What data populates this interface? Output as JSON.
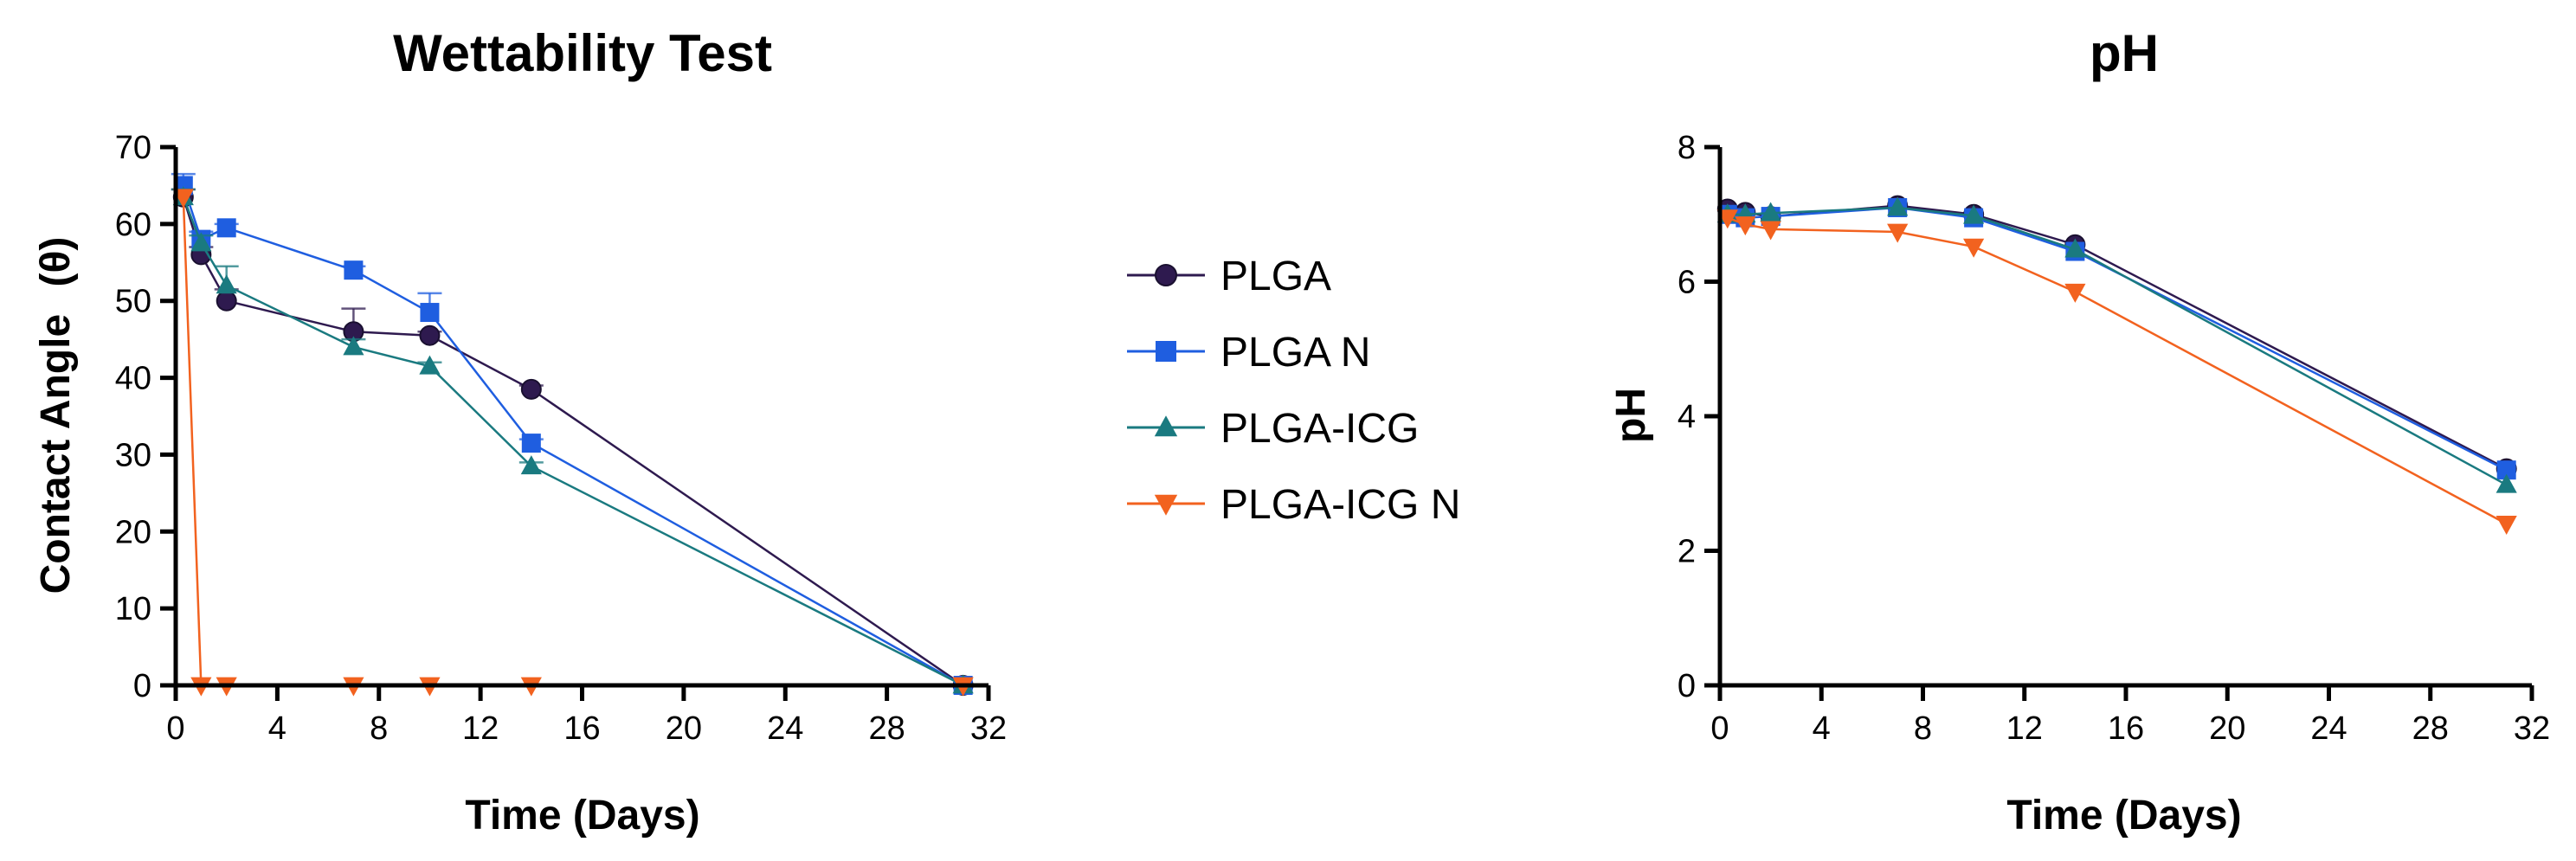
{
  "legend": {
    "items": [
      {
        "label": "PLGA",
        "color": "#2e1a4f",
        "marker": "circle"
      },
      {
        "label": "PLGA N",
        "color": "#1f5ee0",
        "marker": "square"
      },
      {
        "label": "PLGA-ICG",
        "color": "#1a7a80",
        "marker": "triangle-up"
      },
      {
        "label": "PLGA-ICG N",
        "color": "#f2621f",
        "marker": "triangle-down"
      }
    ]
  },
  "chart_data": [
    {
      "type": "line",
      "title": "Wettability  Test",
      "xlabel": "Time (Days)",
      "ylabel": "Contact Angle",
      "ylabel_symbol": "(θ)",
      "xlim": [
        0,
        32
      ],
      "ylim": [
        0,
        70
      ],
      "xticks": [
        0,
        4,
        8,
        12,
        16,
        20,
        24,
        28,
        32
      ],
      "yticks": [
        0,
        10,
        20,
        30,
        40,
        50,
        60,
        70
      ],
      "series": [
        {
          "name": "PLGA",
          "x": [
            0.3,
            1,
            2,
            7,
            10,
            14,
            31
          ],
          "y": [
            63.5,
            56,
            50,
            46,
            45.5,
            38.5,
            0
          ],
          "err": [
            1,
            1,
            1.5,
            3,
            0.5,
            0.5,
            0
          ]
        },
        {
          "name": "PLGA N",
          "x": [
            0.3,
            1,
            2,
            7,
            10,
            14,
            31
          ],
          "y": [
            65,
            58,
            59.5,
            54,
            48.5,
            31.5,
            0
          ],
          "err": [
            1.5,
            1,
            0.5,
            0.5,
            2.5,
            0.5,
            0
          ]
        },
        {
          "name": "PLGA-ICG",
          "x": [
            0.3,
            1,
            2,
            7,
            10,
            14,
            31
          ],
          "y": [
            63.5,
            57.5,
            52,
            44,
            41.5,
            28.5,
            0
          ],
          "err": [
            1,
            1,
            2.5,
            1,
            0.5,
            0.5,
            0
          ]
        },
        {
          "name": "PLGA-ICG N",
          "x": [
            0.3,
            1,
            2,
            7,
            10,
            14,
            31
          ],
          "y": [
            63.5,
            0,
            0,
            0,
            0,
            0,
            0
          ],
          "err": [
            0,
            0,
            0,
            0,
            0,
            0,
            0
          ]
        }
      ]
    },
    {
      "type": "line",
      "title": "pH",
      "xlabel": "Time (Days)",
      "ylabel": "pH",
      "xlim": [
        0,
        32
      ],
      "ylim": [
        0,
        8
      ],
      "xticks": [
        0,
        4,
        8,
        12,
        16,
        20,
        24,
        28,
        32
      ],
      "yticks": [
        0,
        2,
        4,
        6,
        8
      ],
      "series": [
        {
          "name": "PLGA",
          "x": [
            0.3,
            1,
            2,
            7,
            10,
            14,
            31
          ],
          "y": [
            7.08,
            7.03,
            6.97,
            7.13,
            7.0,
            6.55,
            3.22
          ]
        },
        {
          "name": "PLGA N",
          "x": [
            0.3,
            1,
            2,
            7,
            10,
            14,
            31
          ],
          "y": [
            7.0,
            6.95,
            6.97,
            7.1,
            6.95,
            6.45,
            3.2
          ]
        },
        {
          "name": "PLGA-ICG",
          "x": [
            0.3,
            1,
            2,
            7,
            10,
            14,
            31
          ],
          "y": [
            7.0,
            7.0,
            7.02,
            7.1,
            6.98,
            6.48,
            2.98
          ]
        },
        {
          "name": "PLGA-ICG N",
          "x": [
            0.3,
            1,
            2,
            7,
            10,
            14,
            31
          ],
          "y": [
            6.95,
            6.85,
            6.78,
            6.74,
            6.52,
            5.85,
            2.4
          ]
        }
      ]
    }
  ]
}
